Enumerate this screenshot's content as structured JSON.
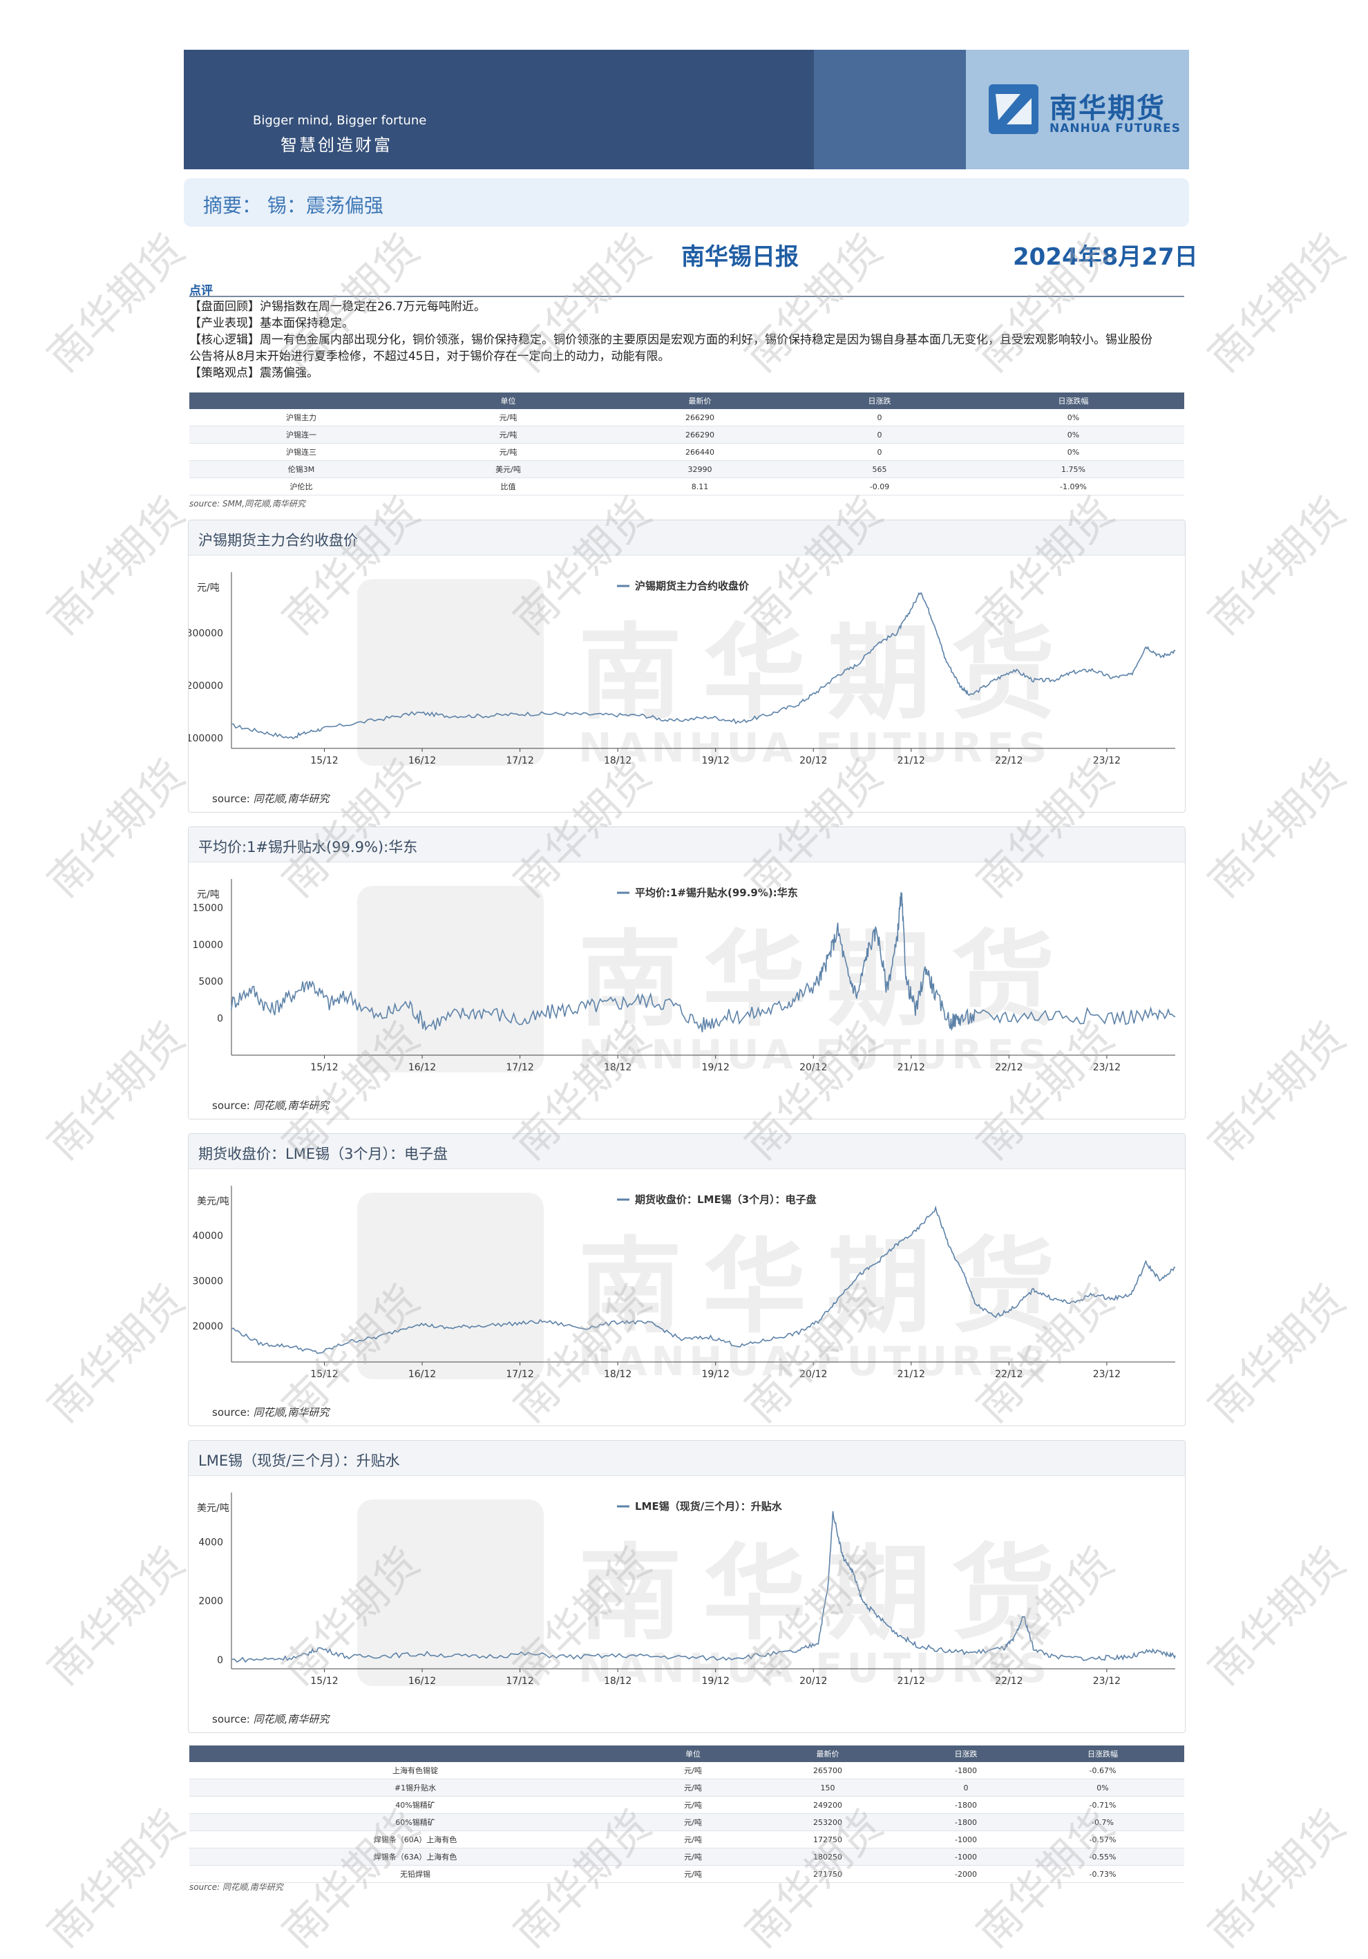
{
  "header": {
    "slogan_en": "Bigger mind, Bigger fortune",
    "slogan_cn": "智慧创造财富",
    "logo_cn": "南华期货",
    "logo_en": "NANHUA FUTURES"
  },
  "watermark": {
    "text": "南华期货",
    "big_cn": "南华期货",
    "big_en": "NANHUA FUTURES"
  },
  "summary": "摘要：  锡：震荡偏强",
  "title": "南华锡日报",
  "date": "2024年8月27日",
  "comment": {
    "label": "点评",
    "lines": [
      "【盘面回顾】沪锡指数在周一稳定在26.7万元每吨附近。",
      "【产业表现】基本面保持稳定。",
      "【核心逻辑】周一有色金属内部出现分化，铜价领涨，锡价保持稳定。铜价领涨的主要原因是宏观方面的利好，锡价保持稳定是因为锡自身基本面几无变化，且受宏观影响较小。锡业股份",
      "公告将从8月末开始进行夏季检修，不超过45日，对于锡价存在一定向上的动力，动能有限。",
      "【策略观点】震荡偏强。"
    ]
  },
  "table1": {
    "headers": [
      "",
      "单位",
      "最新价",
      "日涨跌",
      "日涨跌幅"
    ],
    "rows": [
      [
        "沪锡主力",
        "元/吨",
        "266290",
        "0",
        "0%"
      ],
      [
        "沪锡连一",
        "元/吨",
        "266290",
        "0",
        "0%"
      ],
      [
        "沪锡连三",
        "元/吨",
        "266440",
        "0",
        "0%"
      ],
      [
        "伦锡3M",
        "美元/吨",
        "32990",
        "565",
        "1.75%"
      ],
      [
        "沪伦比",
        "比值",
        "8.11",
        "-0.09",
        "-1.09%"
      ]
    ],
    "source": "source:  SMM,同花顺,南华研究"
  },
  "charts": [
    {
      "panel_title": "沪锡期货主力合约收盘价",
      "unit": "元/吨",
      "legend": "沪锡期货主力合约收盘价",
      "source_label": "source:",
      "source_text": "同花顺,南华研究",
      "chart_data": {
        "type": "line",
        "x_ticks": [
          "15/12",
          "16/12",
          "17/12",
          "18/12",
          "19/12",
          "20/12",
          "21/12",
          "22/12",
          "23/12"
        ],
        "y_ticks": [
          "100000",
          "200000",
          "300000"
        ],
        "ylim": [
          80000,
          390000
        ],
        "x_range": [
          2015.0,
          2024.65
        ],
        "color": "#5d82a8",
        "x": [
          2015.0,
          2015.3,
          2015.6,
          2015.8,
          2016.0,
          2016.5,
          2016.9,
          2017.2,
          2017.6,
          2018.0,
          2018.4,
          2018.8,
          2019.2,
          2019.5,
          2019.9,
          2020.2,
          2020.5,
          2020.8,
          2021.0,
          2021.2,
          2021.4,
          2021.6,
          2021.8,
          2021.9,
          2022.05,
          2022.2,
          2022.3,
          2022.45,
          2022.55,
          2022.8,
          2023.0,
          2023.2,
          2023.4,
          2023.6,
          2023.8,
          2024.0,
          2024.2,
          2024.35,
          2024.5,
          2024.65
        ],
        "values": [
          124000,
          112000,
          100000,
          112000,
          120000,
          135000,
          148000,
          142000,
          142000,
          146000,
          146000,
          144000,
          143000,
          132000,
          140000,
          130000,
          145000,
          165000,
          190000,
          220000,
          240000,
          280000,
          300000,
          330000,
          380000,
          310000,
          250000,
          200000,
          180000,
          210000,
          230000,
          210000,
          210000,
          225000,
          230000,
          215000,
          220000,
          275000,
          255000,
          266000
        ]
      }
    },
    {
      "panel_title": "平均价:1#锡升贴水(99.9%):华东",
      "unit": "元/吨",
      "legend": "平均价:1#锡升贴水(99.9%):华东",
      "source_label": "source:",
      "source_text": "同花顺,南华研究",
      "chart_data": {
        "type": "line",
        "x_ticks": [
          "15/12",
          "16/12",
          "17/12",
          "18/12",
          "19/12",
          "20/12",
          "21/12",
          "22/12",
          "23/12"
        ],
        "y_ticks": [
          "0",
          "5000",
          "10000",
          "15000"
        ],
        "ylim": [
          -5000,
          17000
        ],
        "x_range": [
          2015.0,
          2024.65
        ],
        "color": "#5d82a8",
        "x": [
          2015.0,
          2015.2,
          2015.4,
          2015.6,
          2015.8,
          2016.0,
          2016.2,
          2016.5,
          2016.8,
          2017.0,
          2017.3,
          2017.6,
          2018.0,
          2018.3,
          2018.6,
          2018.9,
          2019.2,
          2019.5,
          2019.8,
          2020.0,
          2020.3,
          2020.6,
          2020.8,
          2021.0,
          2021.1,
          2021.2,
          2021.3,
          2021.4,
          2021.5,
          2021.6,
          2021.7,
          2021.8,
          2021.85,
          2021.9,
          2022.0,
          2022.1,
          2022.2,
          2022.35,
          2022.45,
          2022.6,
          2023.0,
          2023.5,
          2024.0,
          2024.4,
          2024.65
        ],
        "values": [
          2000,
          4000,
          1000,
          3000,
          5000,
          2000,
          3000,
          0,
          2000,
          -1000,
          500,
          1000,
          -500,
          1000,
          1500,
          2000,
          2500,
          2000,
          -1000,
          0,
          500,
          1500,
          3000,
          5000,
          8000,
          12000,
          6000,
          3000,
          9000,
          12000,
          4000,
          10000,
          17000,
          5000,
          1000,
          7000,
          3000,
          -500,
          0,
          200,
          300,
          500,
          100,
          400,
          200
        ]
      }
    },
    {
      "panel_title": "期货收盘价：LME锡（3个月）：电子盘",
      "unit": "美元/吨",
      "legend": "期货收盘价：LME锡（3个月）：电子盘",
      "source_label": "source:",
      "source_text": "同花顺,南华研究",
      "chart_data": {
        "type": "line",
        "x_ticks": [
          "15/12",
          "16/12",
          "17/12",
          "18/12",
          "19/12",
          "20/12",
          "21/12",
          "22/12",
          "23/12"
        ],
        "y_ticks": [
          "20000",
          "30000",
          "40000"
        ],
        "ylim": [
          12000,
          48000
        ],
        "x_range": [
          2015.0,
          2024.65
        ],
        "color": "#5d82a8",
        "x": [
          2015.0,
          2015.3,
          2015.6,
          2015.9,
          2016.2,
          2016.5,
          2016.9,
          2017.2,
          2017.5,
          2017.9,
          2018.2,
          2018.6,
          2019.0,
          2019.3,
          2019.6,
          2019.9,
          2020.2,
          2020.5,
          2020.8,
          2021.0,
          2021.2,
          2021.4,
          2021.6,
          2021.8,
          2022.0,
          2022.2,
          2022.35,
          2022.5,
          2022.6,
          2022.8,
          2023.0,
          2023.2,
          2023.4,
          2023.6,
          2023.8,
          2024.0,
          2024.2,
          2024.35,
          2024.5,
          2024.65
        ],
        "values": [
          19500,
          16000,
          15500,
          14000,
          16500,
          17500,
          20500,
          19500,
          20000,
          20500,
          21000,
          19500,
          21000,
          20500,
          17000,
          17500,
          15500,
          17000,
          18500,
          21000,
          26000,
          31000,
          34000,
          38000,
          41000,
          46000,
          37000,
          31000,
          25000,
          22000,
          24000,
          28000,
          26000,
          25000,
          27000,
          26000,
          27000,
          34000,
          30000,
          33000
        ]
      }
    },
    {
      "panel_title": "LME锡（现货/三个月）：升贴水",
      "unit": "美元/吨",
      "legend": "LME锡（现货/三个月）：升贴水",
      "source_label": "source:",
      "source_text": "同花顺,南华研究",
      "chart_data": {
        "type": "line",
        "x_ticks": [
          "15/12",
          "16/12",
          "17/12",
          "18/12",
          "19/12",
          "20/12",
          "21/12",
          "22/12",
          "23/12"
        ],
        "y_ticks": [
          "0",
          "2000",
          "4000"
        ],
        "ylim": [
          -300,
          5200
        ],
        "x_range": [
          2015.0,
          2024.65
        ],
        "color": "#5d82a8",
        "x": [
          2015.0,
          2015.4,
          2015.7,
          2015.9,
          2016.2,
          2016.6,
          2017.0,
          2017.5,
          2018.0,
          2018.5,
          2019.0,
          2019.5,
          2020.0,
          2020.4,
          2020.8,
          2021.0,
          2021.1,
          2021.15,
          2021.25,
          2021.35,
          2021.45,
          2021.6,
          2021.8,
          2022.0,
          2022.3,
          2022.6,
          2022.9,
          2023.0,
          2023.1,
          2023.2,
          2023.4,
          2023.8,
          2024.0,
          2024.2,
          2024.4,
          2024.55,
          2024.65
        ],
        "values": [
          0,
          30,
          100,
          400,
          100,
          150,
          200,
          100,
          200,
          100,
          150,
          100,
          50,
          150,
          300,
          600,
          2500,
          5000,
          3500,
          3000,
          2000,
          1500,
          900,
          500,
          300,
          250,
          400,
          700,
          1500,
          400,
          100,
          50,
          80,
          120,
          300,
          200,
          150
        ]
      }
    }
  ],
  "table2": {
    "headers": [
      "",
      "单位",
      "最新价",
      "日涨跌",
      "日涨跌幅"
    ],
    "rows": [
      [
        "上海有色锡锭",
        "元/吨",
        "265700",
        "-1800",
        "-0.67%"
      ],
      [
        "#1锡升贴水",
        "元/吨",
        "150",
        "0",
        "0%"
      ],
      [
        "40%锡精矿",
        "元/吨",
        "249200",
        "-1800",
        "-0.71%"
      ],
      [
        "60%锡精矿",
        "元/吨",
        "253200",
        "-1800",
        "-0.7%"
      ],
      [
        "焊锡条（60A）上海有色",
        "元/吨",
        "172750",
        "-1000",
        "-0.57%"
      ],
      [
        "焊锡条（63A）上海有色",
        "元/吨",
        "180250",
        "-1000",
        "-0.55%"
      ],
      [
        "无铅焊锡",
        "元/吨",
        "271750",
        "-2000",
        "-0.73%"
      ]
    ],
    "source": "source:  同花顺,南华研究"
  }
}
